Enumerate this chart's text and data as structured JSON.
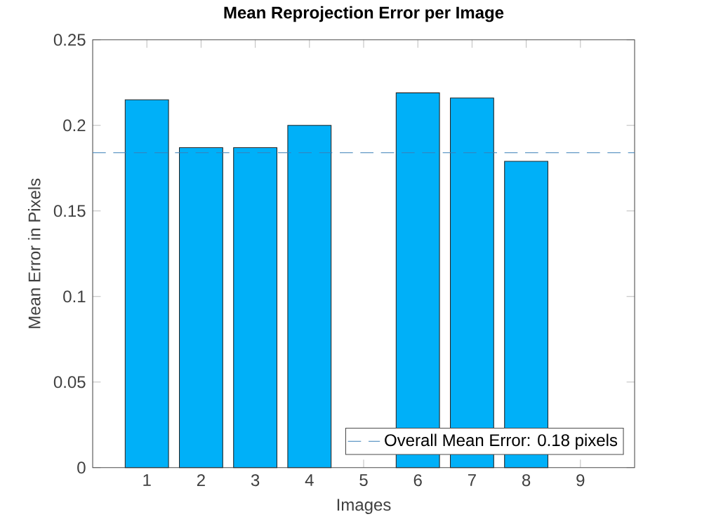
{
  "chart_data": {
    "type": "bar",
    "title": "Mean Reprojection Error per Image",
    "xlabel": "Images",
    "ylabel": "Mean Error in Pixels",
    "categories": [
      "1",
      "2",
      "3",
      "4",
      "5",
      "6",
      "7",
      "8",
      "9"
    ],
    "values": [
      0.215,
      0.187,
      0.187,
      0.2,
      null,
      0.219,
      0.216,
      0.179,
      null
    ],
    "color": "#00b0f8",
    "ylim": [
      0,
      0.25
    ],
    "yticks": [
      0,
      0.05,
      0.1,
      0.15,
      0.2,
      0.25
    ],
    "ref_lines": [
      {
        "axis": "y",
        "value": 0.184,
        "label": "Overall Mean Error: 0.18 pixels",
        "color": "#3a7fb8",
        "line_style": "dashed"
      }
    ],
    "grid": false,
    "legend": "bottom right"
  }
}
